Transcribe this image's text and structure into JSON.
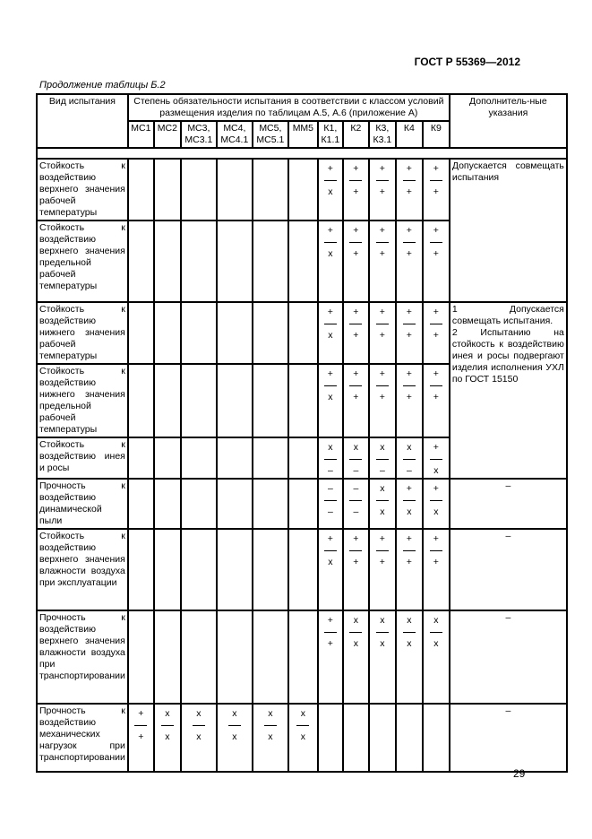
{
  "header": {
    "standard": "ГОСТ Р 55369—2012",
    "continuation": "Продолжение таблицы Б.2"
  },
  "table": {
    "col_test": "Вид испытания",
    "col_degree": "Степень обязательности испытания в соответствии с классом условий размещения  изделия по таблицам А.5, А.6 (приложение А)",
    "col_notes": "Дополнитель-ные указания",
    "classes": [
      "МС1",
      "МС2",
      "МС3, МС3.1",
      "МС4, МС4.1",
      "МС5, МС5.1",
      "ММ5",
      "К1, К1.1",
      "К2",
      "К3, К3.1",
      "К4",
      "К9"
    ],
    "rows": [
      {
        "test": "Стойкость к воздействию верхнего значения рабочей температуры",
        "cells": [
          null,
          null,
          null,
          null,
          null,
          null,
          [
            "+",
            "х"
          ],
          [
            "+",
            "+"
          ],
          [
            "+",
            "+"
          ],
          [
            "+",
            "+"
          ],
          [
            "+",
            "+"
          ]
        ]
      },
      {
        "test": "Стойкость к воздействию верхнего значения предельной рабочей температуры",
        "cells": [
          null,
          null,
          null,
          null,
          null,
          null,
          [
            "+",
            "х"
          ],
          [
            "+",
            "+"
          ],
          [
            "+",
            "+"
          ],
          [
            "+",
            "+"
          ],
          [
            "+",
            "+"
          ]
        ]
      },
      {
        "test": "Стойкость к воздействию нижнего значения рабочей температуры",
        "cells": [
          null,
          null,
          null,
          null,
          null,
          null,
          [
            "+",
            "х"
          ],
          [
            "+",
            "+"
          ],
          [
            "+",
            "+"
          ],
          [
            "+",
            "+"
          ],
          [
            "+",
            "+"
          ]
        ]
      },
      {
        "test": "Стойкость к воздействию нижнего значения предельной рабочей температуры",
        "cells": [
          null,
          null,
          null,
          null,
          null,
          null,
          [
            "+",
            "х"
          ],
          [
            "+",
            "+"
          ],
          [
            "+",
            "+"
          ],
          [
            "+",
            "+"
          ],
          [
            "+",
            "+"
          ]
        ]
      },
      {
        "test": "Стойкость к воздействию инея и росы",
        "cells": [
          null,
          null,
          null,
          null,
          null,
          null,
          [
            "х",
            "–"
          ],
          [
            "х",
            "–"
          ],
          [
            "х",
            "–"
          ],
          [
            "х",
            "–"
          ],
          [
            "+",
            "х"
          ]
        ]
      },
      {
        "test": "Прочность к воздействию динамической пыли",
        "cells": [
          null,
          null,
          null,
          null,
          null,
          null,
          [
            "–",
            "–"
          ],
          [
            "–",
            "–"
          ],
          [
            "х",
            "х"
          ],
          [
            "+",
            "х"
          ],
          [
            "+",
            "х"
          ]
        ]
      },
      {
        "test": "Стойкость к воздействию верхнего значения влажности воздуха при эксплуатации",
        "cells": [
          null,
          null,
          null,
          null,
          null,
          null,
          [
            "+",
            "х"
          ],
          [
            "+",
            "+"
          ],
          [
            "+",
            "+"
          ],
          [
            "+",
            "+"
          ],
          [
            "+",
            "+"
          ]
        ]
      },
      {
        "test": "Прочность к воздействию верхнего значения влажности воздуха при транспортировании",
        "cells": [
          null,
          null,
          null,
          null,
          null,
          null,
          [
            "+",
            "+"
          ],
          [
            "х",
            "х"
          ],
          [
            "х",
            "х"
          ],
          [
            "х",
            "х"
          ],
          [
            "х",
            "х"
          ]
        ]
      },
      {
        "test": "Прочность к воздействию механических нагрузок при транспортировании",
        "cells": [
          [
            "+",
            "+"
          ],
          [
            "х",
            "х"
          ],
          [
            "х",
            "х"
          ],
          [
            "х",
            "х"
          ],
          [
            "х",
            "х"
          ],
          [
            "х",
            "х"
          ],
          null,
          null,
          null,
          null,
          null
        ]
      }
    ],
    "notes": [
      {
        "rows": 2,
        "text": "Допускается совмещать испытания"
      },
      {
        "rows": 3,
        "text": "1 Допускается совмещать испытания.\n2 Испытанию на стойкость к воздействию инея и росы подвергают изделия исполнения УХЛ по ГОСТ 15150"
      },
      {
        "rows": 1,
        "text": "–"
      },
      {
        "rows": 1,
        "text": "–"
      },
      {
        "rows": 1,
        "text": "–"
      },
      {
        "rows": 1,
        "text": "–"
      }
    ]
  },
  "footer": {
    "page_number": "29"
  }
}
